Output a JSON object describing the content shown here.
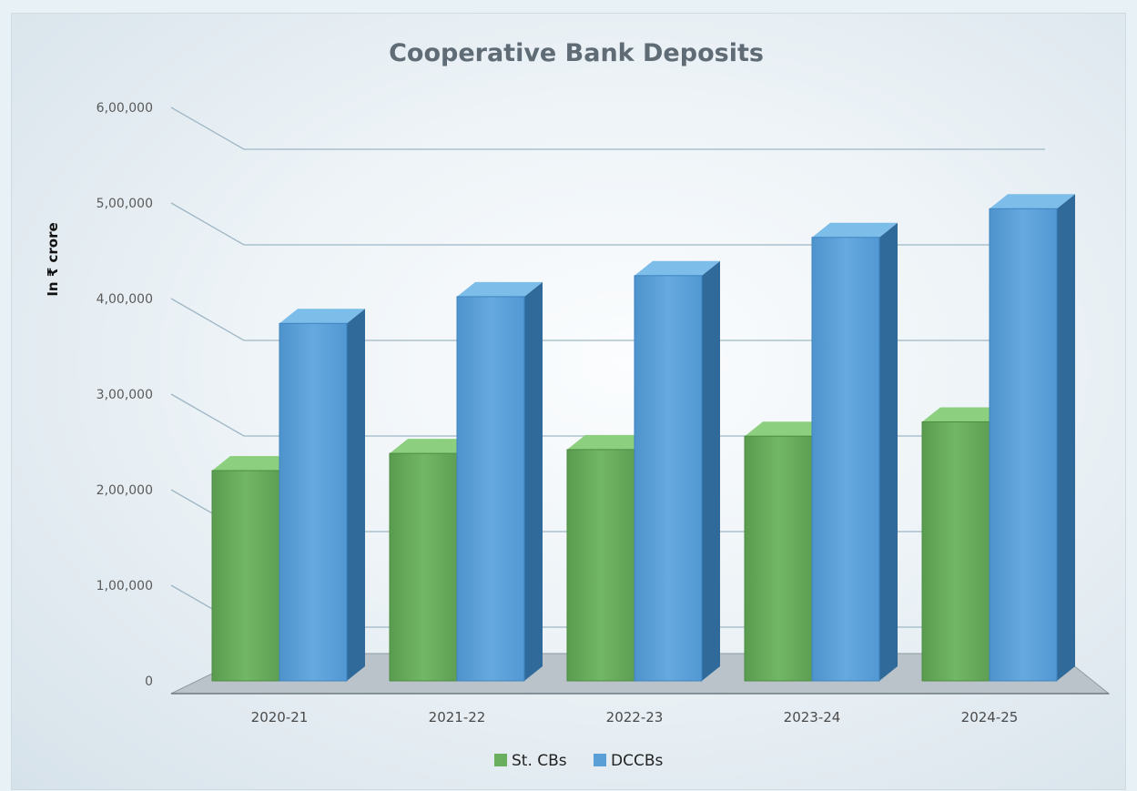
{
  "chart_data": {
    "type": "bar",
    "title": "Cooperative Bank Deposits",
    "ylabel": "In ₹ crore",
    "xlabel": "",
    "categories": [
      "2020-21",
      "2021-22",
      "2022-23",
      "2023-24",
      "2024-25"
    ],
    "series": [
      {
        "name": "St. CBs",
        "values": [
          220000,
          238000,
          242000,
          256000,
          271000
        ]
      },
      {
        "name": "DCCBs",
        "values": [
          374000,
          402000,
          424000,
          464000,
          494000
        ]
      }
    ],
    "ylim": [
      0,
      600000
    ],
    "yticks": [
      0,
      100000,
      200000,
      300000,
      400000,
      500000,
      600000
    ],
    "ytick_labels": [
      "0",
      "1,00,000",
      "2,00,000",
      "3,00,000",
      "4,00,000",
      "5,00,000",
      "6,00,000"
    ],
    "grid": true,
    "legend_position": "bottom",
    "colors": {
      "St. CBs": "#6aaf5e",
      "DCCBs": "#5b9fd7"
    }
  }
}
